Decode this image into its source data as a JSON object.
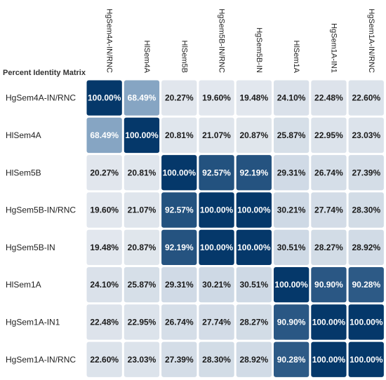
{
  "chart_data": {
    "type": "heatmap",
    "title": "Percent Identity Matrix",
    "value_suffix": "%",
    "rows": [
      "HgSem4A-IN/RNC",
      "HlSem4A",
      "HlSem5B",
      "HgSem5B-IN/RNC",
      "HgSem5B-IN",
      "HlSem1A",
      "HgSem1A-IN1",
      "HgSem1A-IN/RNC"
    ],
    "columns": [
      "HgSem4A-IN/RNC",
      "HlSem4A",
      "HlSem5B",
      "HgSem5B-IN/RNC",
      "HgSem5B-IN",
      "HlSem1A",
      "HgSem1A-IN1",
      "HgSem1A-IN/RNC"
    ],
    "values": [
      [
        100.0,
        68.49,
        20.27,
        19.6,
        19.48,
        24.1,
        22.48,
        22.6
      ],
      [
        68.49,
        100.0,
        20.81,
        21.07,
        20.87,
        25.87,
        22.95,
        23.03
      ],
      [
        20.27,
        20.81,
        100.0,
        92.57,
        92.19,
        29.31,
        26.74,
        27.39
      ],
      [
        19.6,
        21.07,
        92.57,
        100.0,
        100.0,
        30.21,
        27.74,
        28.3
      ],
      [
        19.48,
        20.87,
        92.19,
        100.0,
        100.0,
        30.51,
        28.27,
        28.92
      ],
      [
        24.1,
        25.87,
        29.31,
        30.21,
        30.51,
        100.0,
        90.9,
        90.28
      ],
      [
        22.48,
        22.95,
        26.74,
        27.74,
        28.27,
        90.9,
        100.0,
        100.0
      ],
      [
        22.6,
        23.03,
        27.39,
        28.3,
        28.92,
        90.28,
        100.0,
        100.0
      ]
    ],
    "colors": {
      "low": "#e3e8ee",
      "mid": "#8aa8c6",
      "high": "#05386a",
      "text_dark": "#1a1a1a",
      "text_light": "#ffffff"
    }
  }
}
